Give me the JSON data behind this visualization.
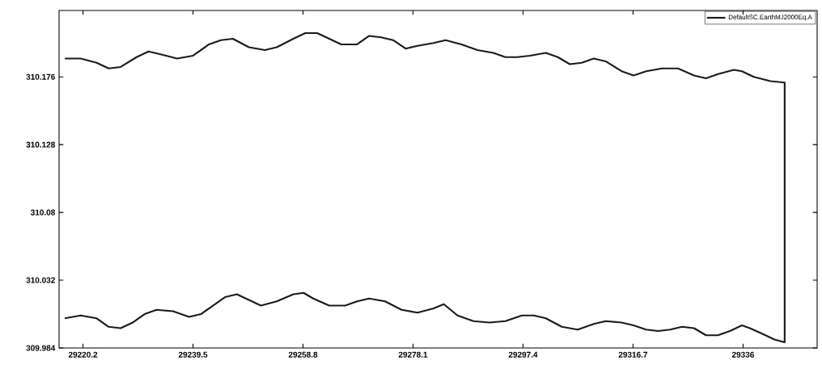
{
  "chart_data": {
    "type": "line",
    "xlim": [
      29216,
      29349
    ],
    "ylim": [
      309.984,
      310.223
    ],
    "xticks": [
      29220.2,
      29239.5,
      29258.8,
      29278.1,
      29297.4,
      29316.7,
      29336
    ],
    "yticks": [
      309.984,
      310.032,
      310.08,
      310.128,
      310.176
    ],
    "legend": "top right",
    "grid": false,
    "marker": "none",
    "line_style": "solid",
    "series": [
      {
        "name": "DefaultSC.EarthMJ2000Eq.A",
        "color": "#1a1a1a",
        "x": [
          29217.0,
          29219.8,
          29222.6,
          29224.7,
          29226.8,
          29229.6,
          29231.7,
          29233.8,
          29236.7,
          29239.5,
          29242.3,
          29244.4,
          29246.5,
          29249.3,
          29252.1,
          29254.2,
          29257.1,
          29259.2,
          29261.3,
          29263.4,
          29265.5,
          29268.3,
          29270.4,
          29272.5,
          29274.6,
          29276.8,
          29278.9,
          29281.7,
          29283.8,
          29286.6,
          29289.4,
          29292.2,
          29294.3,
          29296.4,
          29298.6,
          29301.4,
          29303.5,
          29305.6,
          29307.7,
          29309.8,
          29311.9,
          29314.7,
          29316.8,
          29319.0,
          29321.8,
          29324.6,
          29327.4,
          29329.5,
          29331.6,
          29334.4,
          29335.8,
          29337.9,
          29340.8,
          29343.3,
          29343.3,
          29341.5,
          29339.4,
          29337.2,
          29335.8,
          29333.7,
          29331.6,
          29329.5,
          29327.4,
          29325.3,
          29323.2,
          29321.1,
          29319.0,
          29316.8,
          29314.7,
          29311.9,
          29309.8,
          29307.0,
          29304.2,
          29301.4,
          29299.3,
          29297.2,
          29294.3,
          29291.5,
          29288.7,
          29285.9,
          29283.5,
          29281.7,
          29278.9,
          29276.1,
          29273.2,
          29270.4,
          29268.3,
          29266.2,
          29263.4,
          29260.6,
          29258.9,
          29257.1,
          29254.2,
          29251.4,
          29249.3,
          29247.2,
          29245.1,
          29243.0,
          29240.9,
          29238.8,
          29236.0,
          29233.1,
          29231.0,
          29228.9,
          29226.8,
          29224.7,
          29222.6,
          29219.8,
          29217.0
        ],
        "values": [
          310.189,
          310.189,
          310.186,
          310.182,
          310.183,
          310.19,
          310.194,
          310.192,
          310.189,
          310.191,
          310.199,
          310.202,
          310.203,
          310.197,
          310.195,
          310.197,
          310.203,
          310.207,
          310.207,
          310.203,
          310.199,
          310.199,
          310.205,
          310.204,
          310.202,
          310.196,
          310.198,
          310.2,
          310.202,
          310.199,
          310.195,
          310.193,
          310.19,
          310.19,
          310.191,
          310.193,
          310.19,
          310.185,
          310.186,
          310.189,
          310.187,
          310.18,
          310.177,
          310.18,
          310.182,
          310.182,
          310.177,
          310.175,
          310.178,
          310.181,
          310.18,
          310.176,
          310.173,
          310.172,
          309.988,
          309.99,
          309.994,
          309.998,
          310.0,
          309.996,
          309.993,
          309.993,
          309.998,
          309.999,
          309.997,
          309.996,
          309.997,
          310.0,
          310.002,
          310.003,
          310.001,
          309.997,
          309.999,
          310.005,
          310.007,
          310.007,
          310.003,
          310.002,
          310.003,
          310.007,
          310.015,
          310.012,
          310.009,
          310.011,
          310.017,
          310.019,
          310.017,
          310.014,
          310.014,
          310.019,
          310.023,
          310.022,
          310.017,
          310.014,
          310.018,
          310.022,
          310.02,
          310.014,
          310.008,
          310.006,
          310.01,
          310.011,
          310.008,
          310.002,
          309.998,
          309.999,
          310.005,
          310.007,
          310.005
        ]
      }
    ]
  }
}
